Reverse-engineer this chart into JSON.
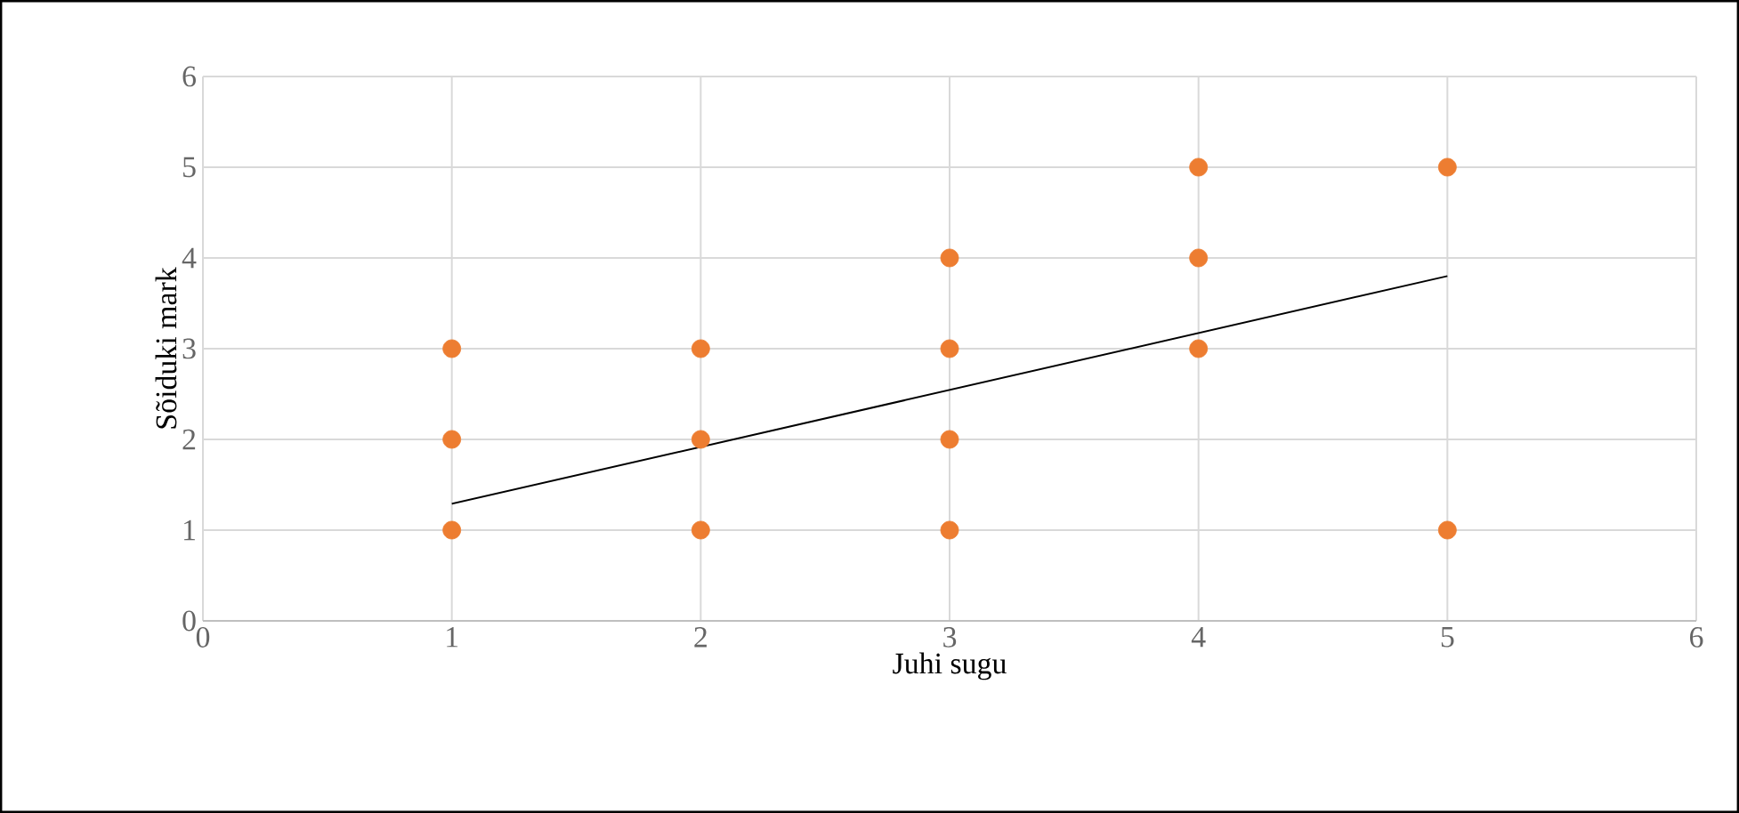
{
  "chart_data": {
    "type": "scatter",
    "xlabel": "Juhi sugu",
    "ylabel": "Sõiduki mark",
    "xlim": [
      0,
      6
    ],
    "ylim": [
      0,
      6
    ],
    "xticks": [
      0,
      1,
      2,
      3,
      4,
      5,
      6
    ],
    "yticks": [
      0,
      1,
      2,
      3,
      4,
      5,
      6
    ],
    "grid": true,
    "series": [
      {
        "marker": "circle",
        "color": "#ed7d31",
        "x": [
          1,
          1,
          1,
          2,
          2,
          2,
          3,
          3,
          3,
          3,
          4,
          4,
          4,
          5,
          5
        ],
        "values": [
          1,
          2,
          3,
          1,
          2,
          3,
          1,
          2,
          3,
          4,
          3,
          4,
          5,
          1,
          5
        ]
      },
      {
        "type": "line",
        "marker": "none",
        "color": "#000000",
        "x": [
          1,
          5
        ],
        "values": [
          1.29,
          3.8
        ]
      }
    ]
  }
}
